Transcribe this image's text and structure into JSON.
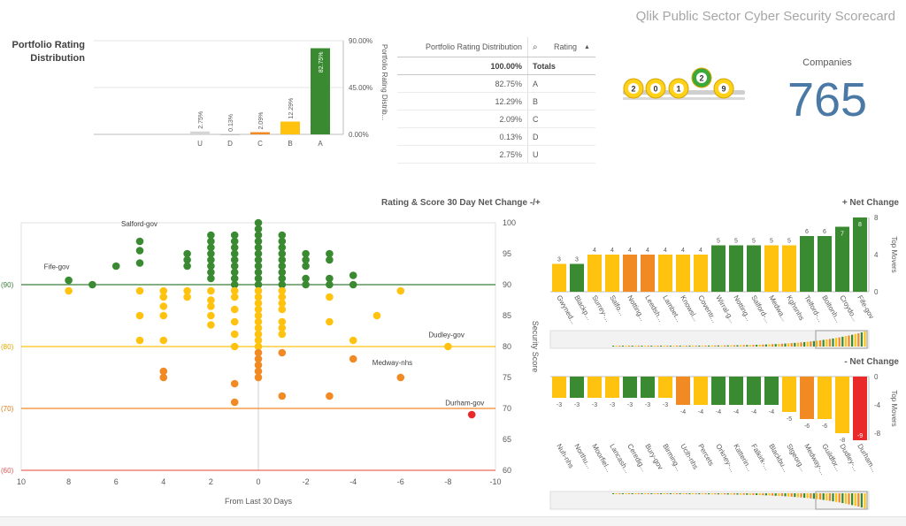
{
  "app": {
    "title": "Qlik Public Sector Cyber Security Scorecard"
  },
  "portfolio": {
    "title_line1": "Portfolio Rating",
    "title_line2": "Distribution",
    "axis_title": "Portfolio Rating Distrib...",
    "y_ticks": [
      "90.00%",
      "45.00%",
      "0.00%"
    ],
    "colors": {
      "A": "#3a8a31",
      "B": "#ffc20e",
      "C": "#f28a24",
      "D": "#bbbbbb",
      "U": "#d5d5d5"
    }
  },
  "rating_table": {
    "header_dist": "Portfolio Rating Distribution",
    "header_rating": "Rating",
    "total_value": "100.00%",
    "total_label": "Totals",
    "rows": [
      {
        "value": "82.75%",
        "rating": "A"
      },
      {
        "value": "12.29%",
        "rating": "B"
      },
      {
        "value": "2.09%",
        "rating": "C"
      },
      {
        "value": "0.13%",
        "rating": "D"
      },
      {
        "value": "2.75%",
        "rating": "U"
      }
    ]
  },
  "lottery": {
    "balls": [
      "2",
      "0",
      "1",
      "2",
      "9"
    ]
  },
  "kpi": {
    "label": "Companies",
    "value": "765"
  },
  "scatter": {
    "title": "Rating & Score 30 Day Net Change -/+",
    "x_label": "From Last 30 Days",
    "y_label": "Security Score",
    "ref_labels": [
      "(90)",
      "(80)",
      "(70)",
      "(60)"
    ],
    "point_labels": [
      "Salford-gov",
      "Fife-gov",
      "Dudley-gov",
      "Medway-nhs",
      "Durham-gov"
    ]
  },
  "pos_change": {
    "title": "+ Net Change",
    "axis_title": "Top Movers",
    "y_ticks": [
      "8",
      "4",
      "0"
    ],
    "value_labels": [
      "3",
      "3",
      "4",
      "4",
      "4",
      "4",
      "4",
      "4",
      "4",
      "5",
      "5",
      "5",
      "5",
      "5",
      "6",
      "6",
      "7",
      "8"
    ],
    "categories": [
      "Gwyned...",
      "Blackp...",
      "Surrey-...",
      "Salfo...",
      "Notting...",
      "Leedsh...",
      "Lambet...",
      "Knowsl...",
      "Coventr...",
      "Wirral-g...",
      "Notting...",
      "Salford-...",
      "Medwa...",
      "Kghsnhs",
      "Telford-...",
      "Boltonh...",
      "Croydo...",
      "Fife-gov"
    ]
  },
  "neg_change": {
    "title": "- Net Change",
    "axis_title": "Top Movers",
    "y_ticks": [
      "0",
      "-4",
      "-8"
    ],
    "value_labels": [
      "-3",
      "-3",
      "-3",
      "-3",
      "-3",
      "-3",
      "-3",
      "-4",
      "-4",
      "-4",
      "-4",
      "-4",
      "-4",
      "-5",
      "-6",
      "-6",
      "-8",
      "-9"
    ],
    "categories": [
      "Nuh-nhs",
      "Northu...",
      "Moorfiel...",
      "Lancash...",
      "Ceredig...",
      "Bury-gov",
      "Birming...",
      "Uclh-nhs",
      "Percets",
      "Orkney-...",
      "Katterin...",
      "Falkirk-...",
      "Blackbu...",
      "Stgeorg...",
      "Medway-...",
      "Guildfor...",
      "Dudley-...",
      "Durham..."
    ]
  },
  "chart_data": [
    {
      "type": "bar",
      "title": "Portfolio Rating Distribution",
      "categories": [
        "U",
        "D",
        "C",
        "B",
        "A"
      ],
      "values": [
        2.75,
        0.13,
        2.09,
        12.29,
        82.75
      ],
      "value_labels": [
        "2.75%",
        "0.13%",
        "2.09%",
        "12.29%",
        "82.75%"
      ],
      "ylabel": "Portfolio Rating Distrib...",
      "ylim": [
        0,
        90
      ]
    },
    {
      "type": "scatter",
      "title": "Rating & Score 30 Day Net Change -/+",
      "xlabel": "From Last 30 Days",
      "ylabel": "Security Score",
      "xlim": [
        10,
        -10
      ],
      "ylim": [
        60,
        100
      ],
      "x_ticks": [
        "10",
        "8",
        "6",
        "4",
        "2",
        "0",
        "-2",
        "-4",
        "-6",
        "-8",
        "-10"
      ],
      "y_ticks": [
        "100",
        "95",
        "90",
        "85",
        "80",
        "75",
        "70",
        "65",
        "60"
      ],
      "reference_lines": [
        90,
        80,
        70,
        60
      ],
      "series": [
        {
          "name": "A",
          "color": "#3a8a31",
          "points": [
            [
              8,
              90.7
            ],
            [
              7,
              90
            ],
            [
              6,
              93
            ],
            [
              5,
              97
            ],
            [
              5,
              95.5
            ],
            [
              5,
              93.5
            ],
            [
              3,
              95
            ],
            [
              3,
              94
            ],
            [
              3,
              93
            ],
            [
              2,
              98
            ],
            [
              2,
              97
            ],
            [
              2,
              96
            ],
            [
              2,
              95
            ],
            [
              2,
              94
            ],
            [
              2,
              93
            ],
            [
              2,
              92
            ],
            [
              2,
              91
            ],
            [
              1,
              98
            ],
            [
              1,
              97
            ],
            [
              1,
              96
            ],
            [
              1,
              95
            ],
            [
              1,
              94
            ],
            [
              1,
              93
            ],
            [
              1,
              92
            ],
            [
              1,
              91
            ],
            [
              1,
              90
            ],
            [
              0,
              100
            ],
            [
              0,
              99
            ],
            [
              0,
              98
            ],
            [
              0,
              97
            ],
            [
              0,
              96
            ],
            [
              0,
              95
            ],
            [
              0,
              94
            ],
            [
              0,
              93
            ],
            [
              0,
              92
            ],
            [
              0,
              91
            ],
            [
              0,
              90
            ],
            [
              -1,
              98
            ],
            [
              -1,
              97
            ],
            [
              -1,
              96
            ],
            [
              -1,
              95
            ],
            [
              -1,
              94
            ],
            [
              -1,
              93
            ],
            [
              -1,
              92
            ],
            [
              -1,
              91
            ],
            [
              -1,
              90
            ],
            [
              -2,
              95
            ],
            [
              -2,
              94
            ],
            [
              -2,
              93
            ],
            [
              -2,
              91
            ],
            [
              -2,
              90
            ],
            [
              -3,
              95
            ],
            [
              -3,
              94
            ],
            [
              -3,
              91
            ],
            [
              -3,
              90
            ],
            [
              -4,
              91.5
            ],
            [
              -4,
              90
            ]
          ]
        },
        {
          "name": "B",
          "color": "#ffc20e",
          "points": [
            [
              8,
              89
            ],
            [
              5,
              89
            ],
            [
              5,
              85
            ],
            [
              5,
              81
            ],
            [
              4,
              89
            ],
            [
              4,
              88
            ],
            [
              4,
              86.5
            ],
            [
              4,
              85
            ],
            [
              4,
              81
            ],
            [
              3,
              89
            ],
            [
              3,
              88
            ],
            [
              2,
              89
            ],
            [
              2,
              87.5
            ],
            [
              2,
              86.5
            ],
            [
              2,
              85
            ],
            [
              2,
              83.5
            ],
            [
              1,
              89
            ],
            [
              1,
              88
            ],
            [
              1,
              86
            ],
            [
              1,
              84
            ],
            [
              1,
              82
            ],
            [
              1,
              80
            ],
            [
              0,
              89
            ],
            [
              0,
              88
            ],
            [
              0,
              87
            ],
            [
              0,
              86
            ],
            [
              0,
              85
            ],
            [
              0,
              84
            ],
            [
              0,
              83
            ],
            [
              0,
              82
            ],
            [
              0,
              81
            ],
            [
              0,
              80
            ],
            [
              -1,
              89
            ],
            [
              -1,
              88
            ],
            [
              -1,
              87
            ],
            [
              -1,
              86
            ],
            [
              -1,
              84
            ],
            [
              -1,
              83
            ],
            [
              -1,
              82
            ],
            [
              -3,
              88
            ],
            [
              -3,
              84
            ],
            [
              -4,
              81
            ],
            [
              -5,
              85
            ],
            [
              -6,
              89
            ],
            [
              -8,
              80
            ]
          ]
        },
        {
          "name": "C",
          "color": "#f28a24",
          "points": [
            [
              4,
              76
            ],
            [
              4,
              75
            ],
            [
              1,
              74
            ],
            [
              1,
              71
            ],
            [
              0,
              79
            ],
            [
              0,
              78
            ],
            [
              0,
              77
            ],
            [
              0,
              76
            ],
            [
              0,
              75
            ],
            [
              -1,
              79
            ],
            [
              -1,
              72
            ],
            [
              -3,
              72
            ],
            [
              -4,
              78
            ],
            [
              -6,
              75
            ]
          ]
        },
        {
          "name": "D",
          "color": "#ea2a2a",
          "points": [
            [
              -9,
              69
            ]
          ]
        }
      ]
    },
    {
      "type": "bar",
      "title": "+ Net Change",
      "categories": [
        "Gwyned...",
        "Blackp...",
        "Surrey-...",
        "Salfo...",
        "Notting...",
        "Leedsh...",
        "Lambet...",
        "Knowsl...",
        "Coventr...",
        "Wirral-g...",
        "Notting...",
        "Salford-...",
        "Medwa...",
        "Kghsnhs",
        "Telford-...",
        "Boltonh...",
        "Croydo...",
        "Fife-gov"
      ],
      "values": [
        3,
        3,
        4,
        4,
        4,
        4,
        4,
        4,
        4,
        5,
        5,
        5,
        5,
        5,
        6,
        6,
        7,
        8
      ],
      "colors": [
        "#ffc20e",
        "#3a8a31",
        "#ffc20e",
        "#ffc20e",
        "#f28a24",
        "#f28a24",
        "#ffc20e",
        "#ffc20e",
        "#ffc20e",
        "#3a8a31",
        "#3a8a31",
        "#3a8a31",
        "#ffc20e",
        "#ffc20e",
        "#3a8a31",
        "#3a8a31",
        "#3a8a31",
        "#3a8a31"
      ],
      "ylabel": "Top Movers",
      "ylim": [
        0,
        8
      ]
    },
    {
      "type": "bar",
      "title": "- Net Change",
      "categories": [
        "Nuh-nhs",
        "Northu...",
        "Moorfiel...",
        "Lancash...",
        "Ceredig...",
        "Bury-gov",
        "Birming...",
        "Uclh-nhs",
        "Percets",
        "Orkney-...",
        "Katterin...",
        "Falkirk-...",
        "Blackbu...",
        "Stgeorg...",
        "Medway-...",
        "Guildfor...",
        "Dudley-...",
        "Durham..."
      ],
      "values": [
        -3,
        -3,
        -3,
        -3,
        -3,
        -3,
        -3,
        -4,
        -4,
        -4,
        -4,
        -4,
        -4,
        -5,
        -6,
        -6,
        -8,
        -9
      ],
      "colors": [
        "#ffc20e",
        "#3a8a31",
        "#ffc20e",
        "#ffc20e",
        "#3a8a31",
        "#3a8a31",
        "#ffc20e",
        "#f28a24",
        "#ffc20e",
        "#3a8a31",
        "#3a8a31",
        "#3a8a31",
        "#3a8a31",
        "#ffc20e",
        "#f28a24",
        "#ffc20e",
        "#ffc20e",
        "#ea2a2a"
      ],
      "ylabel": "Top Movers",
      "ylim": [
        -9,
        0
      ]
    }
  ]
}
